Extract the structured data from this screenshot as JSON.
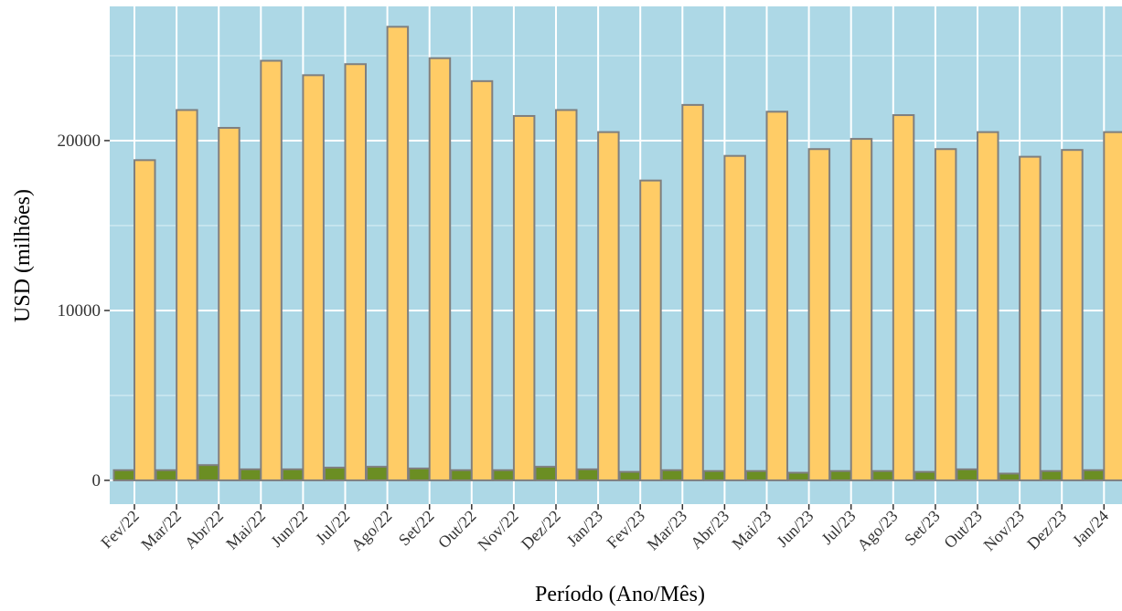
{
  "chart_data": {
    "type": "bar",
    "title": "",
    "xlabel": "Período (Ano/Mês)",
    "ylabel": "USD (milhões)",
    "categories": [
      "Fev/22",
      "Mar/22",
      "Abr/22",
      "Mai/22",
      "Jun/22",
      "Jul/22",
      "Ago/22",
      "Set/22",
      "Out/22",
      "Nov/22",
      "Dez/22",
      "Jan/23",
      "Fev/23",
      "Mar/23",
      "Abr/23",
      "Mai/23",
      "Jun/23",
      "Jul/23",
      "Ago/23",
      "Set/23",
      "Out/23",
      "Nov/23",
      "Dez/23",
      "Jan/24"
    ],
    "series": [
      {
        "color": "#6b8e23",
        "values": [
          600,
          600,
          900,
          650,
          650,
          750,
          800,
          700,
          600,
          600,
          800,
          650,
          500,
          600,
          550,
          550,
          450,
          550,
          550,
          500,
          650,
          400,
          550,
          600
        ]
      },
      {
        "color": "#ffcc66",
        "values": [
          18850,
          21800,
          20750,
          24700,
          23850,
          24500,
          26700,
          24850,
          23500,
          21450,
          21800,
          20500,
          17650,
          22100,
          19100,
          21700,
          19500,
          20100,
          21500,
          19500,
          20500,
          19050,
          19450,
          20500
        ]
      }
    ],
    "ylim": [
      -1400,
      27900
    ],
    "yticks": [
      0,
      10000,
      20000
    ],
    "grid": true,
    "legend": "none",
    "panel_background": "#add8e6",
    "bar_outline": "#7f7f7f"
  }
}
